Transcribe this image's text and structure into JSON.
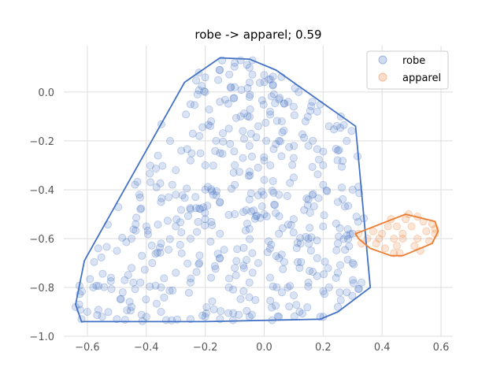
{
  "chart_data": {
    "type": "scatter",
    "title": "robe -> apparel; 0.59",
    "xlabel": "",
    "ylabel": "",
    "xlim": [
      -0.68,
      0.64
    ],
    "ylim": [
      -1.0,
      0.19
    ],
    "x_ticks": [
      "−0.6",
      "−0.4",
      "−0.2",
      "0.0",
      "0.2",
      "0.4",
      "0.6"
    ],
    "x_tick_values": [
      -0.6,
      -0.4,
      -0.2,
      0.0,
      0.2,
      0.4,
      0.6
    ],
    "y_ticks": [
      "0.0",
      "−0.2",
      "−0.4",
      "−0.6",
      "−0.8",
      "−1.0"
    ],
    "y_tick_values": [
      0.0,
      -0.2,
      -0.4,
      -0.6,
      -0.8,
      -1.0
    ],
    "grid": true,
    "legend_position": "top-right",
    "series": [
      {
        "name": "robe",
        "color": "#4472c4",
        "point_count": 500,
        "hull": [
          [
            -0.15,
            0.14
          ],
          [
            -0.05,
            0.135
          ],
          [
            0.04,
            0.09
          ],
          [
            0.31,
            -0.14
          ],
          [
            0.36,
            -0.8
          ],
          [
            0.25,
            -0.9
          ],
          [
            0.19,
            -0.93
          ],
          [
            -0.2,
            -0.94
          ],
          [
            -0.62,
            -0.94
          ],
          [
            -0.64,
            -0.87
          ],
          [
            -0.61,
            -0.69
          ],
          [
            -0.27,
            0.04
          ]
        ],
        "points": [
          [
            -0.62,
            -0.93
          ],
          [
            -0.64,
            -0.88
          ],
          [
            -0.6,
            -0.9
          ],
          [
            -0.55,
            -0.92
          ],
          [
            -0.5,
            -0.93
          ],
          [
            -0.45,
            -0.88
          ],
          [
            -0.4,
            -0.92
          ],
          [
            -0.35,
            -0.9
          ],
          [
            -0.25,
            -0.93
          ],
          [
            -0.2,
            -0.92
          ],
          [
            -0.15,
            -0.93
          ],
          [
            -0.05,
            -0.92
          ],
          [
            0.05,
            -0.92
          ],
          [
            0.12,
            -0.9
          ],
          [
            0.19,
            -0.92
          ],
          [
            0.25,
            -0.88
          ],
          [
            -0.58,
            -0.8
          ],
          [
            -0.52,
            -0.76
          ],
          [
            -0.48,
            -0.82
          ],
          [
            -0.45,
            -0.72
          ],
          [
            -0.42,
            -0.78
          ],
          [
            -0.38,
            -0.7
          ],
          [
            -0.35,
            -0.8
          ],
          [
            -0.3,
            -0.74
          ],
          [
            -0.28,
            -0.66
          ],
          [
            -0.25,
            -0.78
          ],
          [
            -0.22,
            -0.7
          ],
          [
            -0.18,
            -0.76
          ],
          [
            -0.15,
            -0.68
          ],
          [
            -0.12,
            -0.8
          ],
          [
            -0.1,
            -0.72
          ],
          [
            -0.05,
            -0.78
          ],
          [
            -0.02,
            -0.7
          ],
          [
            0.02,
            -0.76
          ],
          [
            0.05,
            -0.68
          ],
          [
            0.08,
            -0.8
          ],
          [
            0.12,
            -0.72
          ],
          [
            0.15,
            -0.78
          ],
          [
            0.18,
            -0.68
          ],
          [
            0.22,
            -0.8
          ],
          [
            0.25,
            -0.74
          ],
          [
            0.28,
            -0.82
          ],
          [
            0.3,
            -0.7
          ],
          [
            0.33,
            -0.78
          ],
          [
            -0.5,
            -0.65
          ],
          [
            -0.45,
            -0.6
          ],
          [
            -0.4,
            -0.55
          ],
          [
            -0.35,
            -0.62
          ],
          [
            -0.3,
            -0.55
          ],
          [
            -0.25,
            -0.6
          ],
          [
            -0.2,
            -0.52
          ],
          [
            -0.15,
            -0.58
          ],
          [
            -0.1,
            -0.5
          ],
          [
            -0.05,
            -0.56
          ],
          [
            0.0,
            -0.5
          ],
          [
            0.05,
            -0.58
          ],
          [
            0.1,
            -0.52
          ],
          [
            0.15,
            -0.6
          ],
          [
            0.2,
            -0.55
          ],
          [
            0.25,
            -0.62
          ],
          [
            0.3,
            -0.58
          ],
          [
            -0.42,
            -0.48
          ],
          [
            -0.35,
            -0.45
          ],
          [
            -0.3,
            -0.42
          ],
          [
            -0.25,
            -0.48
          ],
          [
            -0.2,
            -0.4
          ],
          [
            -0.15,
            -0.45
          ],
          [
            -0.1,
            -0.38
          ],
          [
            -0.05,
            -0.44
          ],
          [
            0.0,
            -0.36
          ],
          [
            0.05,
            -0.42
          ],
          [
            0.1,
            -0.35
          ],
          [
            0.15,
            -0.44
          ],
          [
            0.2,
            -0.38
          ],
          [
            0.25,
            -0.45
          ],
          [
            0.3,
            -0.4
          ],
          [
            -0.3,
            -0.32
          ],
          [
            -0.25,
            -0.28
          ],
          [
            -0.2,
            -0.3
          ],
          [
            -0.15,
            -0.25
          ],
          [
            -0.1,
            -0.3
          ],
          [
            -0.05,
            -0.22
          ],
          [
            0.0,
            -0.28
          ],
          [
            0.05,
            -0.2
          ],
          [
            0.1,
            -0.27
          ],
          [
            0.15,
            -0.22
          ],
          [
            0.2,
            -0.3
          ],
          [
            0.25,
            -0.24
          ],
          [
            0.28,
            -0.2
          ],
          [
            -0.22,
            -0.18
          ],
          [
            -0.18,
            -0.12
          ],
          [
            -0.12,
            -0.15
          ],
          [
            -0.08,
            -0.1
          ],
          [
            -0.02,
            -0.14
          ],
          [
            0.02,
            -0.08
          ],
          [
            0.06,
            -0.12
          ],
          [
            0.1,
            -0.06
          ],
          [
            0.14,
            -0.12
          ],
          [
            0.18,
            -0.08
          ],
          [
            0.22,
            -0.14
          ],
          [
            0.26,
            -0.1
          ],
          [
            -0.25,
            -0.05
          ],
          [
            -0.2,
            0.0
          ],
          [
            -0.15,
            -0.04
          ],
          [
            -0.1,
            0.02
          ],
          [
            -0.05,
            -0.02
          ],
          [
            0.0,
            0.04
          ],
          [
            0.05,
            -0.03
          ],
          [
            -0.2,
            0.06
          ],
          [
            -0.15,
            0.09
          ],
          [
            -0.1,
            0.12
          ],
          [
            -0.05,
            0.1
          ],
          [
            0.0,
            0.07
          ],
          [
            -0.08,
            0.13
          ],
          [
            -0.04,
            0.13
          ]
        ]
      },
      {
        "name": "apparel",
        "color": "#ed7d31",
        "point_count": 30,
        "hull": [
          [
            0.48,
            -0.5
          ],
          [
            0.58,
            -0.53
          ],
          [
            0.59,
            -0.57
          ],
          [
            0.57,
            -0.62
          ],
          [
            0.47,
            -0.67
          ],
          [
            0.43,
            -0.67
          ],
          [
            0.36,
            -0.64
          ],
          [
            0.32,
            -0.6
          ],
          [
            0.31,
            -0.58
          ]
        ],
        "points": [
          [
            0.32,
            -0.58
          ],
          [
            0.35,
            -0.6
          ],
          [
            0.38,
            -0.62
          ],
          [
            0.4,
            -0.58
          ],
          [
            0.42,
            -0.55
          ],
          [
            0.44,
            -0.6
          ],
          [
            0.45,
            -0.63
          ],
          [
            0.47,
            -0.58
          ],
          [
            0.48,
            -0.52
          ],
          [
            0.5,
            -0.55
          ],
          [
            0.52,
            -0.6
          ],
          [
            0.55,
            -0.57
          ],
          [
            0.57,
            -0.54
          ],
          [
            0.58,
            -0.58
          ],
          [
            0.53,
            -0.65
          ],
          [
            0.46,
            -0.66
          ],
          [
            0.43,
            -0.52
          ],
          [
            0.49,
            -0.5
          ],
          [
            0.51,
            -0.63
          ],
          [
            0.37,
            -0.57
          ],
          [
            0.41,
            -0.64
          ],
          [
            0.54,
            -0.53
          ],
          [
            0.56,
            -0.61
          ],
          [
            0.45,
            -0.55
          ],
          [
            0.39,
            -0.6
          ],
          [
            0.33,
            -0.62
          ],
          [
            0.47,
            -0.6
          ],
          [
            0.52,
            -0.51
          ],
          [
            0.58,
            -0.56
          ],
          [
            0.44,
            -0.66
          ]
        ]
      }
    ]
  }
}
